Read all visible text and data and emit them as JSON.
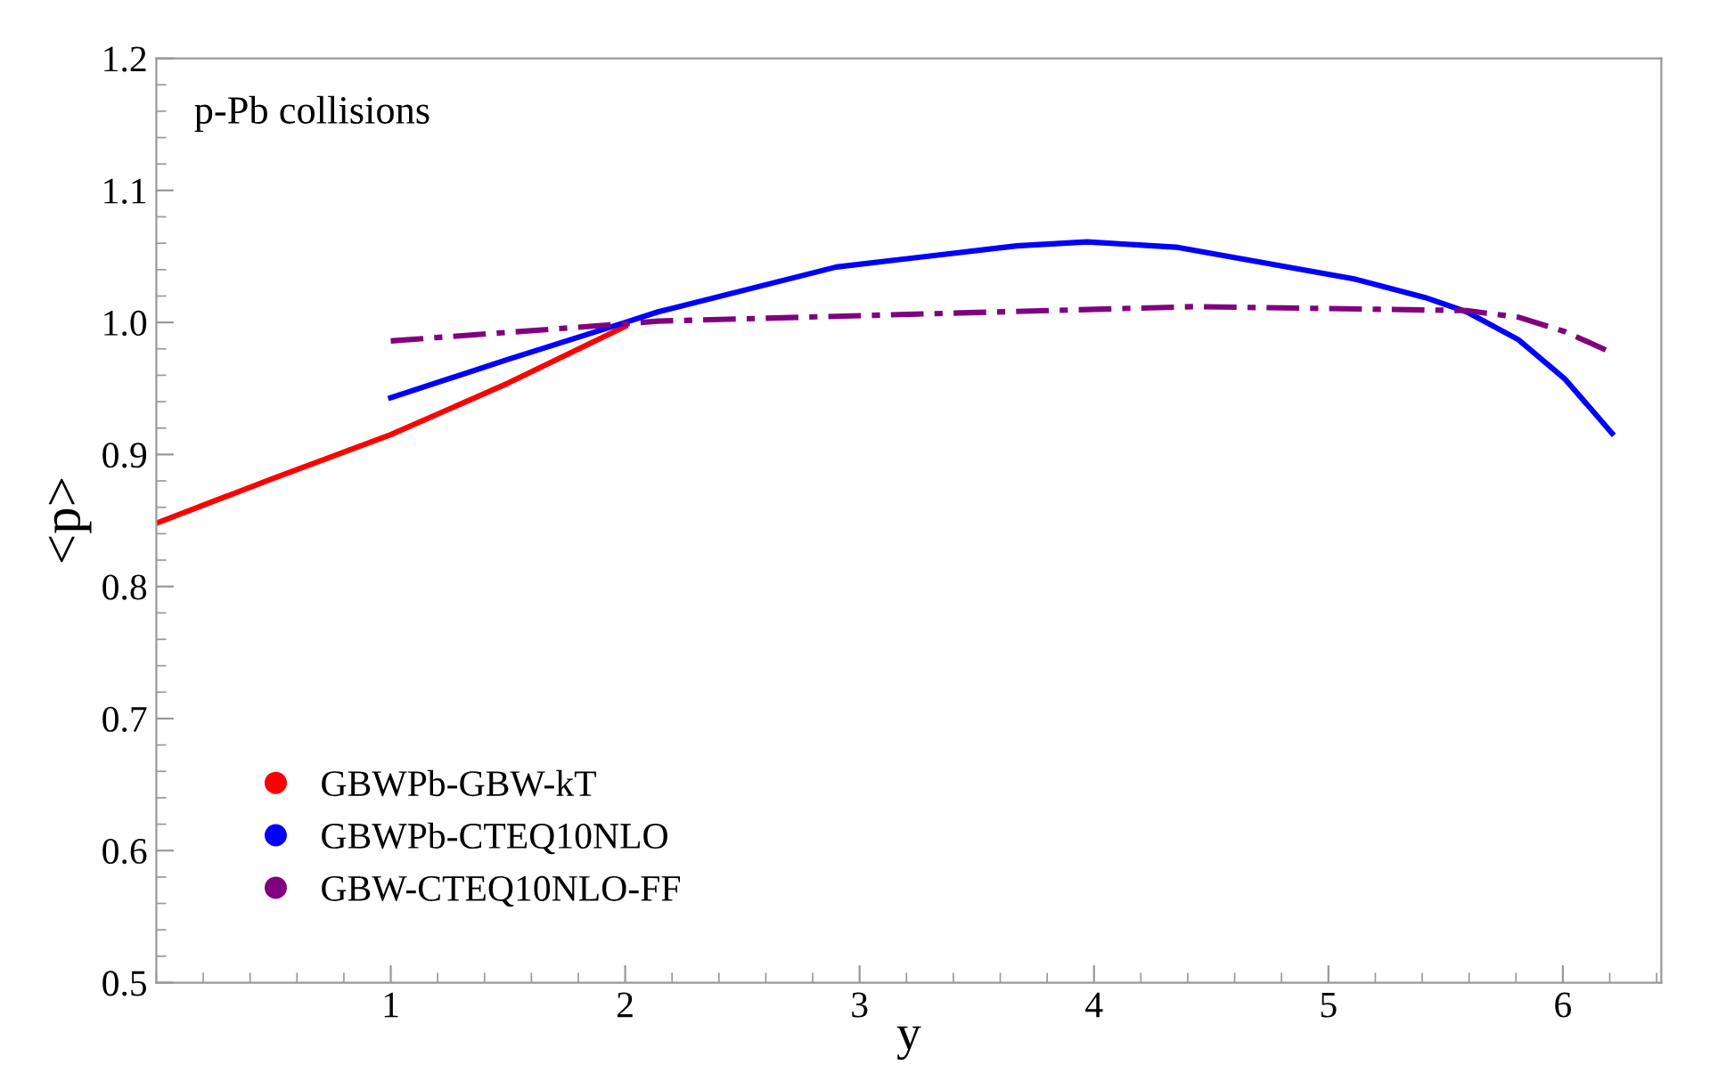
{
  "chart_data": {
    "type": "line",
    "xlabel": "y",
    "ylabel": "<p>",
    "annotations": [
      "p-Pb collisions"
    ],
    "xlim": [
      0,
      6.42
    ],
    "ylim": [
      0.5,
      1.2
    ],
    "xticks": [
      1,
      2,
      3,
      4,
      5,
      6
    ],
    "yticks": [
      {
        "value": 0.5,
        "label": "0.5"
      },
      {
        "value": 0.6,
        "label": "0.6"
      },
      {
        "value": 0.7,
        "label": "0.7"
      },
      {
        "value": 0.8,
        "label": "0.8"
      },
      {
        "value": 0.9,
        "label": "0.9"
      },
      {
        "value": 1.0,
        "label": "1.0"
      },
      {
        "value": 1.1,
        "label": "1.1"
      },
      {
        "value": 1.2,
        "label": "1.2"
      }
    ],
    "grid": false,
    "legend": "bottom left",
    "series": [
      {
        "name": "GBWPb-GBW-kT",
        "color": "#ff0000",
        "line_style": "solid",
        "x": [
          0,
          0.5,
          1,
          1.5,
          2
        ],
        "values": [
          0.848,
          0.882,
          0.915,
          0.954,
          0.997
        ]
      },
      {
        "name": "GBWPb-CTEQ10NLO",
        "color": "#0000ff",
        "line_style": "solid",
        "x": [
          1,
          1.5,
          2,
          2.14,
          2.9,
          3.67,
          3.97,
          4.35,
          5.11,
          5.41,
          5.59,
          5.81,
          6.01,
          6.21
        ],
        "values": [
          0.943,
          0.972,
          1.0,
          1.008,
          1.042,
          1.058,
          1.061,
          1.057,
          1.033,
          1.019,
          1.008,
          0.987,
          0.957,
          0.916
        ]
      },
      {
        "name": "GBW-CTEQ10NLO-FF",
        "color": "#800080",
        "line_style": "dashed",
        "x": [
          1,
          2,
          2.14,
          4.43,
          5.59,
          5.81,
          6.01,
          6.21
        ],
        "values": [
          0.986,
          0.999,
          1.001,
          1.012,
          1.009,
          1.004,
          0.993,
          0.977
        ]
      }
    ]
  }
}
